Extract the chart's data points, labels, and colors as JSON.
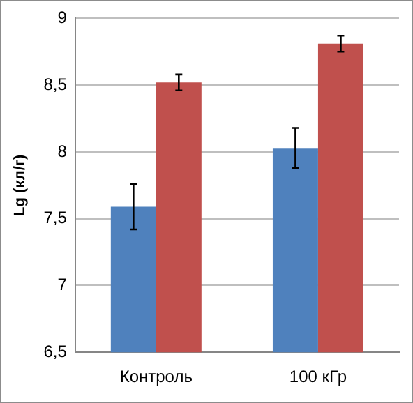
{
  "chart_data": {
    "type": "bar",
    "ylabel": "Lg (кл/г)",
    "categories": [
      "Контроль",
      "100 кГр"
    ],
    "series": [
      {
        "color": "#4f81bd",
        "values": [
          7.59,
          8.03
        ],
        "errors": [
          0.17,
          0.15
        ]
      },
      {
        "color": "#c0504d",
        "values": [
          8.52,
          8.81
        ],
        "errors": [
          0.06,
          0.06
        ]
      }
    ],
    "ylim": [
      6.5,
      9
    ],
    "yticks": [
      {
        "value": 6.5,
        "label": "6,5"
      },
      7,
      {
        "value": 7.5,
        "label": "7,5"
      },
      8,
      {
        "value": 8.5,
        "label": "8,5"
      },
      9
    ],
    "grid": "y",
    "legend": false
  }
}
